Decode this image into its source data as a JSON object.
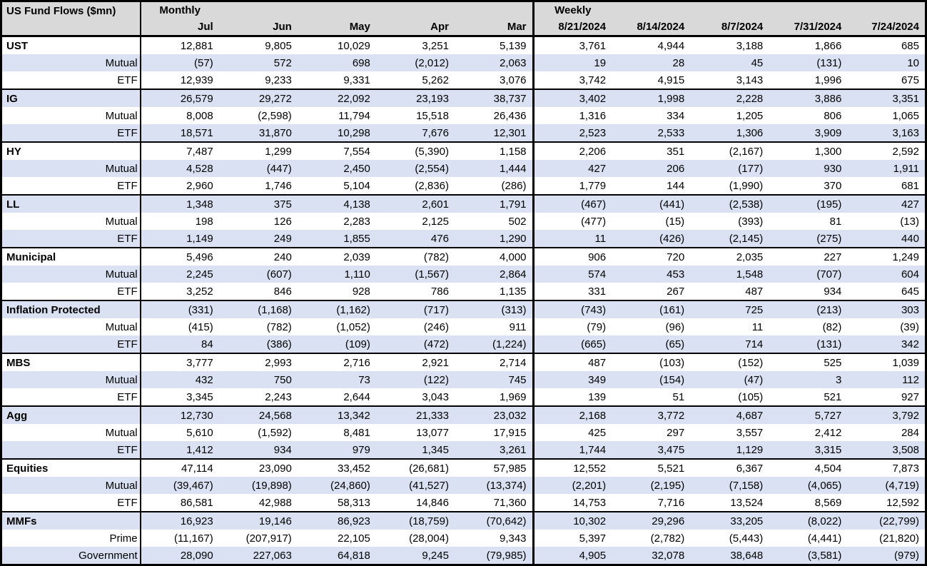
{
  "table": {
    "title": "US Fund Flows ($mn)",
    "colors": {
      "header_bg": "#d9d9d9",
      "stripe_bg": "#d9e1f2",
      "border": "#000000"
    },
    "sections": [
      {
        "label": "Monthly",
        "columns": [
          "Jul",
          "Jun",
          "May",
          "Apr",
          "Mar"
        ]
      },
      {
        "label": "Weekly",
        "columns": [
          "8/21/2024",
          "8/14/2024",
          "8/7/2024",
          "7/31/2024",
          "7/24/2024"
        ]
      }
    ],
    "rows": [
      {
        "label": "UST",
        "type": "group",
        "values": [
          "12,881",
          "9,805",
          "10,029",
          "3,251",
          "5,139",
          "3,761",
          "4,944",
          "3,188",
          "1,866",
          "685"
        ]
      },
      {
        "label": "Mutual",
        "type": "sub",
        "values": [
          "(57)",
          "572",
          "698",
          "(2,012)",
          "2,063",
          "19",
          "28",
          "45",
          "(131)",
          "10"
        ]
      },
      {
        "label": "ETF",
        "type": "sub",
        "values": [
          "12,939",
          "9,233",
          "9,331",
          "5,262",
          "3,076",
          "3,742",
          "4,915",
          "3,143",
          "1,996",
          "675"
        ]
      },
      {
        "label": "IG",
        "type": "group",
        "values": [
          "26,579",
          "29,272",
          "22,092",
          "23,193",
          "38,737",
          "3,402",
          "1,998",
          "2,228",
          "3,886",
          "3,351"
        ]
      },
      {
        "label": "Mutual",
        "type": "sub",
        "values": [
          "8,008",
          "(2,598)",
          "11,794",
          "15,518",
          "26,436",
          "1,316",
          "334",
          "1,205",
          "806",
          "1,065"
        ]
      },
      {
        "label": "ETF",
        "type": "sub",
        "values": [
          "18,571",
          "31,870",
          "10,298",
          "7,676",
          "12,301",
          "2,523",
          "2,533",
          "1,306",
          "3,909",
          "3,163"
        ]
      },
      {
        "label": "HY",
        "type": "group",
        "values": [
          "7,487",
          "1,299",
          "7,554",
          "(5,390)",
          "1,158",
          "2,206",
          "351",
          "(2,167)",
          "1,300",
          "2,592"
        ]
      },
      {
        "label": "Mutual",
        "type": "sub",
        "values": [
          "4,528",
          "(447)",
          "2,450",
          "(2,554)",
          "1,444",
          "427",
          "206",
          "(177)",
          "930",
          "1,911"
        ]
      },
      {
        "label": "ETF",
        "type": "sub",
        "values": [
          "2,960",
          "1,746",
          "5,104",
          "(2,836)",
          "(286)",
          "1,779",
          "144",
          "(1,990)",
          "370",
          "681"
        ]
      },
      {
        "label": "LL",
        "type": "group",
        "values": [
          "1,348",
          "375",
          "4,138",
          "2,601",
          "1,791",
          "(467)",
          "(441)",
          "(2,538)",
          "(195)",
          "427"
        ]
      },
      {
        "label": "Mutual",
        "type": "sub",
        "values": [
          "198",
          "126",
          "2,283",
          "2,125",
          "502",
          "(477)",
          "(15)",
          "(393)",
          "81",
          "(13)"
        ]
      },
      {
        "label": "ETF",
        "type": "sub",
        "values": [
          "1,149",
          "249",
          "1,855",
          "476",
          "1,290",
          "11",
          "(426)",
          "(2,145)",
          "(275)",
          "440"
        ]
      },
      {
        "label": "Municipal",
        "type": "group",
        "values": [
          "5,496",
          "240",
          "2,039",
          "(782)",
          "4,000",
          "906",
          "720",
          "2,035",
          "227",
          "1,249"
        ]
      },
      {
        "label": "Mutual",
        "type": "sub",
        "values": [
          "2,245",
          "(607)",
          "1,110",
          "(1,567)",
          "2,864",
          "574",
          "453",
          "1,548",
          "(707)",
          "604"
        ]
      },
      {
        "label": "ETF",
        "type": "sub",
        "values": [
          "3,252",
          "846",
          "928",
          "786",
          "1,135",
          "331",
          "267",
          "487",
          "934",
          "645"
        ]
      },
      {
        "label": "Inflation Protected",
        "type": "group",
        "values": [
          "(331)",
          "(1,168)",
          "(1,162)",
          "(717)",
          "(313)",
          "(743)",
          "(161)",
          "725",
          "(213)",
          "303"
        ]
      },
      {
        "label": "Mutual",
        "type": "sub",
        "values": [
          "(415)",
          "(782)",
          "(1,052)",
          "(246)",
          "911",
          "(79)",
          "(96)",
          "11",
          "(82)",
          "(39)"
        ]
      },
      {
        "label": "ETF",
        "type": "sub",
        "values": [
          "84",
          "(386)",
          "(109)",
          "(472)",
          "(1,224)",
          "(665)",
          "(65)",
          "714",
          "(131)",
          "342"
        ]
      },
      {
        "label": "MBS",
        "type": "group",
        "values": [
          "3,777",
          "2,993",
          "2,716",
          "2,921",
          "2,714",
          "487",
          "(103)",
          "(152)",
          "525",
          "1,039"
        ]
      },
      {
        "label": "Mutual",
        "type": "sub",
        "values": [
          "432",
          "750",
          "73",
          "(122)",
          "745",
          "349",
          "(154)",
          "(47)",
          "3",
          "112"
        ]
      },
      {
        "label": "ETF",
        "type": "sub",
        "values": [
          "3,345",
          "2,243",
          "2,644",
          "3,043",
          "1,969",
          "139",
          "51",
          "(105)",
          "521",
          "927"
        ]
      },
      {
        "label": "Agg",
        "type": "group",
        "values": [
          "12,730",
          "24,568",
          "13,342",
          "21,333",
          "23,032",
          "2,168",
          "3,772",
          "4,687",
          "5,727",
          "3,792"
        ]
      },
      {
        "label": "Mutual",
        "type": "sub",
        "values": [
          "5,610",
          "(1,592)",
          "8,481",
          "13,077",
          "17,915",
          "425",
          "297",
          "3,557",
          "2,412",
          "284"
        ]
      },
      {
        "label": "ETF",
        "type": "sub",
        "values": [
          "1,412",
          "934",
          "979",
          "1,345",
          "3,261",
          "1,744",
          "3,475",
          "1,129",
          "3,315",
          "3,508"
        ]
      },
      {
        "label": "Equities",
        "type": "group",
        "values": [
          "47,114",
          "23,090",
          "33,452",
          "(26,681)",
          "57,985",
          "12,552",
          "5,521",
          "6,367",
          "4,504",
          "7,873"
        ]
      },
      {
        "label": "Mutual",
        "type": "sub",
        "values": [
          "(39,467)",
          "(19,898)",
          "(24,860)",
          "(41,527)",
          "(13,374)",
          "(2,201)",
          "(2,195)",
          "(7,158)",
          "(4,065)",
          "(4,719)"
        ]
      },
      {
        "label": "ETF",
        "type": "sub",
        "values": [
          "86,581",
          "42,988",
          "58,313",
          "14,846",
          "71,360",
          "14,753",
          "7,716",
          "13,524",
          "8,569",
          "12,592"
        ]
      },
      {
        "label": "MMFs",
        "type": "group",
        "values": [
          "16,923",
          "19,146",
          "86,923",
          "(18,759)",
          "(70,642)",
          "10,302",
          "29,296",
          "33,205",
          "(8,022)",
          "(22,799)"
        ]
      },
      {
        "label": "Prime",
        "type": "sub",
        "values": [
          "(11,167)",
          "(207,917)",
          "22,105",
          "(28,004)",
          "9,343",
          "5,397",
          "(2,782)",
          "(5,443)",
          "(4,441)",
          "(21,820)"
        ]
      },
      {
        "label": "Government",
        "type": "sub",
        "values": [
          "28,090",
          "227,063",
          "64,818",
          "9,245",
          "(79,985)",
          "4,905",
          "32,078",
          "38,648",
          "(3,581)",
          "(979)"
        ]
      }
    ]
  }
}
